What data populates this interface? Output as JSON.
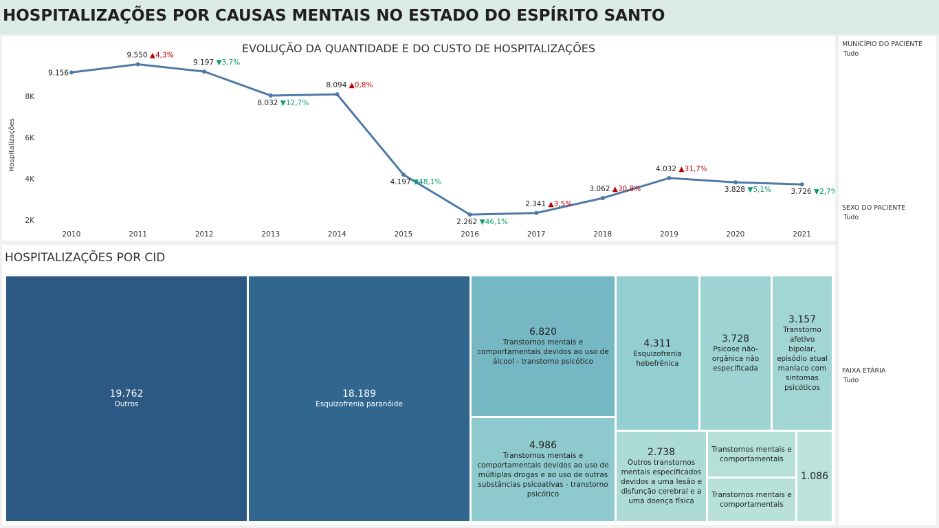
{
  "header": {
    "title": "HOSPITALIZAÇÕES POR CAUSAS MENTAIS NO ESTADO DO ESPÍRITO SANTO"
  },
  "line_chart": {
    "title": "EVOLUÇÃO DA QUANTIDADE E DO CUSTO DE HOSPITALIZAÇÕES"
  },
  "chart_data": {
    "type": "line",
    "title": "EVOLUÇÃO DA QUANTIDADE E DO CUSTO DE HOSPITALIZAÇÕES",
    "ylabel": "Hospitalizações",
    "xlabel": "",
    "x": [
      "2010",
      "2011",
      "2012",
      "2013",
      "2014",
      "2015",
      "2016",
      "2017",
      "2018",
      "2019",
      "2020",
      "2021"
    ],
    "series": [
      {
        "values": [
          9156,
          9550,
          9197,
          8032,
          8094,
          4197,
          2262,
          2341,
          3062,
          4032,
          3828,
          3726
        ]
      }
    ],
    "value_labels": [
      "9.156",
      "9.550",
      "9.197",
      "8.032",
      "8.094",
      "4.197",
      "2.262",
      "2.341",
      "3.062",
      "4.032",
      "3.828",
      "3.726"
    ],
    "changes": [
      null,
      {
        "dir": "up",
        "text": "4,3%"
      },
      {
        "dir": "down",
        "text": "3,7%"
      },
      {
        "dir": "down",
        "text": "12,7%"
      },
      {
        "dir": "up",
        "text": "0,8%"
      },
      {
        "dir": "down",
        "text": "48,1%"
      },
      {
        "dir": "down",
        "text": "46,1%"
      },
      {
        "dir": "up",
        "text": "3,5%"
      },
      {
        "dir": "up",
        "text": "30,8%"
      },
      {
        "dir": "up",
        "text": "31,7%"
      },
      {
        "dir": "down",
        "text": "5,1%"
      },
      {
        "dir": "down",
        "text": "2,7%"
      }
    ],
    "yticks": [
      {
        "v": 2000,
        "label": "2K"
      },
      {
        "v": 4000,
        "label": "4K"
      },
      {
        "v": 6000,
        "label": "6K"
      },
      {
        "v": 8000,
        "label": "8K"
      }
    ],
    "ylim": [
      1900,
      10000
    ],
    "grid": false,
    "colors": {
      "line": "#4e79a7",
      "up": "#c00000",
      "down": "#0a9e6b",
      "text": "#222222"
    }
  },
  "treemap": {
    "title": "HOSPITALIZAÇÕES POR CID",
    "tiles": [
      {
        "value": "19.762",
        "label": "Outros",
        "color": "#2c5884"
      },
      {
        "value": "18.189",
        "label": "Esquizofrenia paranóide",
        "color": "#31668f"
      },
      {
        "value": "6.820",
        "label": "Transtornos mentais e comportamentais devidos ao uso de álcool - transtorno psicótico",
        "color": "#75b8c4"
      },
      {
        "value": "4.986",
        "label": "Transtornos mentais e comportamentais devidos ao uso de múltiplas drogas e ao uso de outras substâncias psicoativas - transtorno psicótico",
        "color": "#8ecacd"
      },
      {
        "value": "4.311",
        "label": "Esquizofrenia hebefrênica",
        "color": "#93ced0"
      },
      {
        "value": "3.728",
        "label": "Psicose não-orgânica não especificada",
        "color": "#9dd4d3"
      },
      {
        "value": "3.157",
        "label": "Transtorno afetivo bipolar, episódio atual maníaco com sintomas psicóticos",
        "color": "#a2d6d4"
      },
      {
        "value": "2.738",
        "label": "Outros transtornos mentais especificados devidos a uma lesão e disfunção cerebral e a uma doença física",
        "color": "#addcd7"
      },
      {
        "value": "",
        "label": "Transtornos mentais e comportamentais",
        "color": "#b4e0d8"
      },
      {
        "value": "",
        "label": "Transtornos mentais e comportamentais",
        "color": "#b7e1d9"
      },
      {
        "value": "1.086",
        "label": "",
        "color": "#bbe3da"
      }
    ]
  },
  "filters": [
    {
      "title": "MUNICÍPIO DO PACIENTE",
      "value": "Tudo"
    },
    {
      "title": "SEXO DO PACIENTE",
      "value": "Tudo"
    },
    {
      "title": "FAIXA ETÁRIA",
      "value": "Tudo"
    }
  ]
}
